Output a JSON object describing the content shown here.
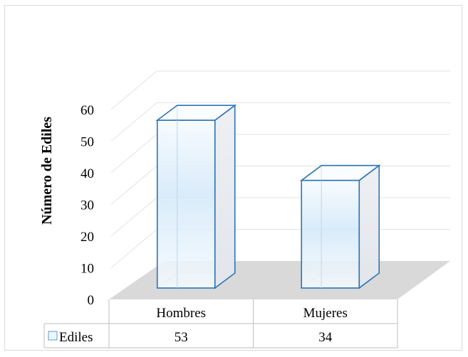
{
  "chart_data": {
    "type": "bar",
    "categories": [
      "Hombres",
      "Mujeres"
    ],
    "series": [
      {
        "name": "Ediles",
        "values": [
          53,
          34
        ]
      }
    ],
    "ylabel": "Número de Ediles",
    "xlabel": "",
    "title": "",
    "ylim": [
      0,
      60
    ],
    "yticks": [
      0,
      10,
      20,
      30,
      40,
      50,
      60
    ],
    "grid": true,
    "legend": "data-table",
    "colors": {
      "bar_edge": "#2e74b5",
      "bar_fill_light": "#f4f9fe",
      "bar_fill_mid": "#cfe5f8",
      "floor": "#d9d9d9",
      "grid": "#e3e3e3",
      "table_border": "#bfbfbf"
    }
  }
}
